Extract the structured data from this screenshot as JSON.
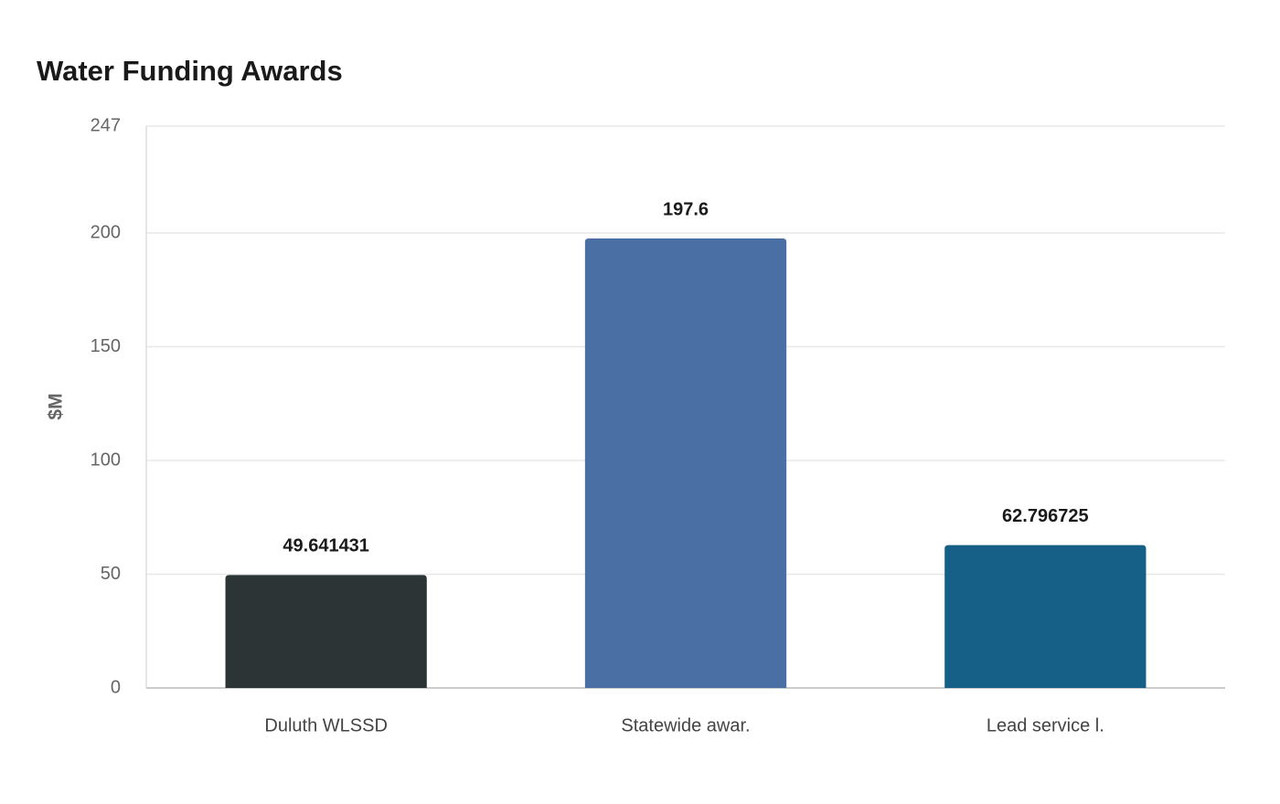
{
  "chart_data": {
    "type": "bar",
    "title": "Water Funding Awards",
    "y_label": "$M",
    "categories": [
      "Duluth WLSSD",
      "Statewide awar.",
      "Lead service l."
    ],
    "values": [
      49.641431,
      197.6,
      62.796725
    ],
    "colors": [
      "#2d3436",
      "#4a6fa5",
      "#166088"
    ],
    "ylim": [
      0,
      247
    ],
    "yticks": [
      0,
      50,
      100,
      150,
      200,
      247
    ],
    "grid": true
  }
}
